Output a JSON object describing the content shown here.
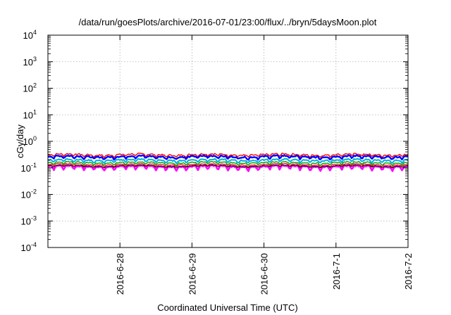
{
  "chart_data": {
    "type": "line",
    "title": "/data/run/goesPlots/archive/2016-07-01/23:00/flux/../bryn/5daysMoon.plot",
    "xlabel": "Coordinated Universal Time (UTC)",
    "ylabel": "cGy/day",
    "yscale": "log",
    "ylim": [
      0.0001,
      10000
    ],
    "xlim": [
      "2016-06-27",
      "2016-07-02"
    ],
    "grid": true,
    "y_ticks": [
      {
        "base": "10",
        "exp": "-4"
      },
      {
        "base": "10",
        "exp": "-3"
      },
      {
        "base": "10",
        "exp": "-2"
      },
      {
        "base": "10",
        "exp": "-1"
      },
      {
        "base": "10",
        "exp": "0"
      },
      {
        "base": "10",
        "exp": "1"
      },
      {
        "base": "10",
        "exp": "2"
      },
      {
        "base": "10",
        "exp": "3"
      },
      {
        "base": "10",
        "exp": "4"
      }
    ],
    "x_ticks": [
      "2016-6-28",
      "2016-6-29",
      "2016-6-30",
      "2016-7-1",
      "2016-7-2"
    ],
    "series": [
      {
        "color": "#ff0000",
        "level": 0.32,
        "dip_depth": 0.18,
        "noise": 0.06,
        "width": 1.4
      },
      {
        "color": "#0000ff",
        "level": 0.27,
        "dip_depth": 0.2,
        "noise": 0.06,
        "width": 2.4
      },
      {
        "color": "#00b0e0",
        "level": 0.2,
        "dip_depth": 0.22,
        "noise": 0.05,
        "width": 2.0
      },
      {
        "color": "#00a000",
        "level": 0.16,
        "dip_depth": 0.2,
        "noise": 0.04,
        "width": 1.4
      },
      {
        "color": "#ff00ff",
        "level": 0.115,
        "dip_depth": 0.3,
        "noise": 0.05,
        "width": 2.6
      },
      {
        "color": "#ff0000",
        "level": 0.135,
        "dip_depth": 0.15,
        "noise": 0.03,
        "width": 1.2
      },
      {
        "color": "#000000",
        "level": 0.12,
        "dip_depth": 0.12,
        "noise": 0.02,
        "width": 1.0
      }
    ]
  }
}
